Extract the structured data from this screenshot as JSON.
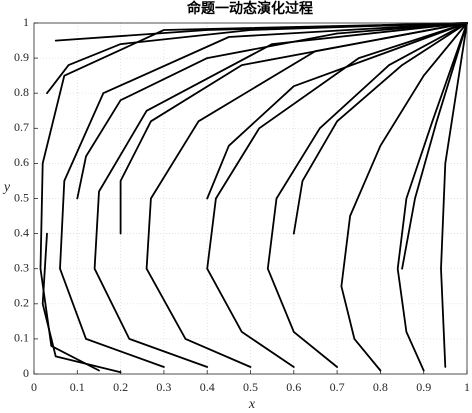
{
  "chart_data": {
    "type": "line",
    "title": "命题一动态演化过程",
    "x_label": "x",
    "y_label": "y",
    "xlim": [
      0,
      1
    ],
    "ylim": [
      0,
      1
    ],
    "xticks": [
      0,
      0.1,
      0.2,
      0.3,
      0.4,
      0.5,
      0.6,
      0.7,
      0.8,
      0.9,
      1
    ],
    "yticks": [
      0,
      0.1,
      0.2,
      0.3,
      0.4,
      0.5,
      0.6,
      0.7,
      0.8,
      0.9,
      1
    ],
    "grid": true,
    "color": "#000000",
    "series": [
      {
        "x": [
          0.8,
          0.74,
          0.71,
          0.73,
          0.8,
          0.9,
          1
        ],
        "y": [
          0.01,
          0.1,
          0.25,
          0.45,
          0.65,
          0.85,
          1
        ]
      },
      {
        "x": [
          0.9,
          0.86,
          0.84,
          0.86,
          0.92,
          1
        ],
        "y": [
          0.01,
          0.12,
          0.3,
          0.5,
          0.72,
          1
        ]
      },
      {
        "x": [
          0.7,
          0.6,
          0.54,
          0.56,
          0.66,
          0.82,
          1
        ],
        "y": [
          0.02,
          0.12,
          0.3,
          0.5,
          0.7,
          0.88,
          1
        ]
      },
      {
        "x": [
          0.6,
          0.48,
          0.4,
          0.42,
          0.52,
          0.75,
          1
        ],
        "y": [
          0.02,
          0.12,
          0.3,
          0.5,
          0.7,
          0.9,
          1
        ]
      },
      {
        "x": [
          0.5,
          0.35,
          0.26,
          0.27,
          0.38,
          0.65,
          1
        ],
        "y": [
          0.02,
          0.1,
          0.3,
          0.5,
          0.72,
          0.92,
          1
        ]
      },
      {
        "x": [
          0.4,
          0.22,
          0.14,
          0.15,
          0.26,
          0.55,
          1
        ],
        "y": [
          0.02,
          0.1,
          0.3,
          0.52,
          0.75,
          0.94,
          1
        ]
      },
      {
        "x": [
          0.3,
          0.12,
          0.06,
          0.07,
          0.16,
          0.45,
          1
        ],
        "y": [
          0.02,
          0.1,
          0.3,
          0.55,
          0.8,
          0.96,
          1
        ]
      },
      {
        "x": [
          0.15,
          0.04,
          0.015,
          0.02,
          0.07,
          0.3,
          1
        ],
        "y": [
          0.01,
          0.08,
          0.3,
          0.6,
          0.85,
          0.98,
          1
        ]
      },
      {
        "x": [
          0.95,
          0.94,
          0.95,
          1
        ],
        "y": [
          0.02,
          0.3,
          0.6,
          1
        ]
      },
      {
        "x": [
          0.1,
          0.12,
          0.2,
          0.4,
          0.7,
          1
        ],
        "y": [
          0.5,
          0.62,
          0.78,
          0.9,
          0.97,
          1
        ]
      },
      {
        "x": [
          0.03,
          0.08,
          0.2,
          0.5,
          1
        ],
        "y": [
          0.8,
          0.88,
          0.94,
          0.98,
          1
        ]
      },
      {
        "x": [
          0.05,
          0.4,
          1
        ],
        "y": [
          0.95,
          0.98,
          1
        ]
      },
      {
        "x": [
          0.2,
          0.2,
          0.27,
          0.48,
          1
        ],
        "y": [
          0.4,
          0.55,
          0.72,
          0.88,
          1
        ]
      },
      {
        "x": [
          0.6,
          0.62,
          0.7,
          0.85,
          1
        ],
        "y": [
          0.4,
          0.55,
          0.72,
          0.88,
          1
        ]
      },
      {
        "x": [
          0.4,
          0.45,
          0.6,
          1
        ],
        "y": [
          0.5,
          0.65,
          0.82,
          1
        ]
      },
      {
        "x": [
          0.85,
          0.88,
          0.93,
          1
        ],
        "y": [
          0.3,
          0.5,
          0.72,
          1
        ]
      },
      {
        "x": [
          0.2,
          0.05,
          0.02,
          0.03
        ],
        "y": [
          0.005,
          0.05,
          0.2,
          0.4
        ]
      }
    ]
  }
}
